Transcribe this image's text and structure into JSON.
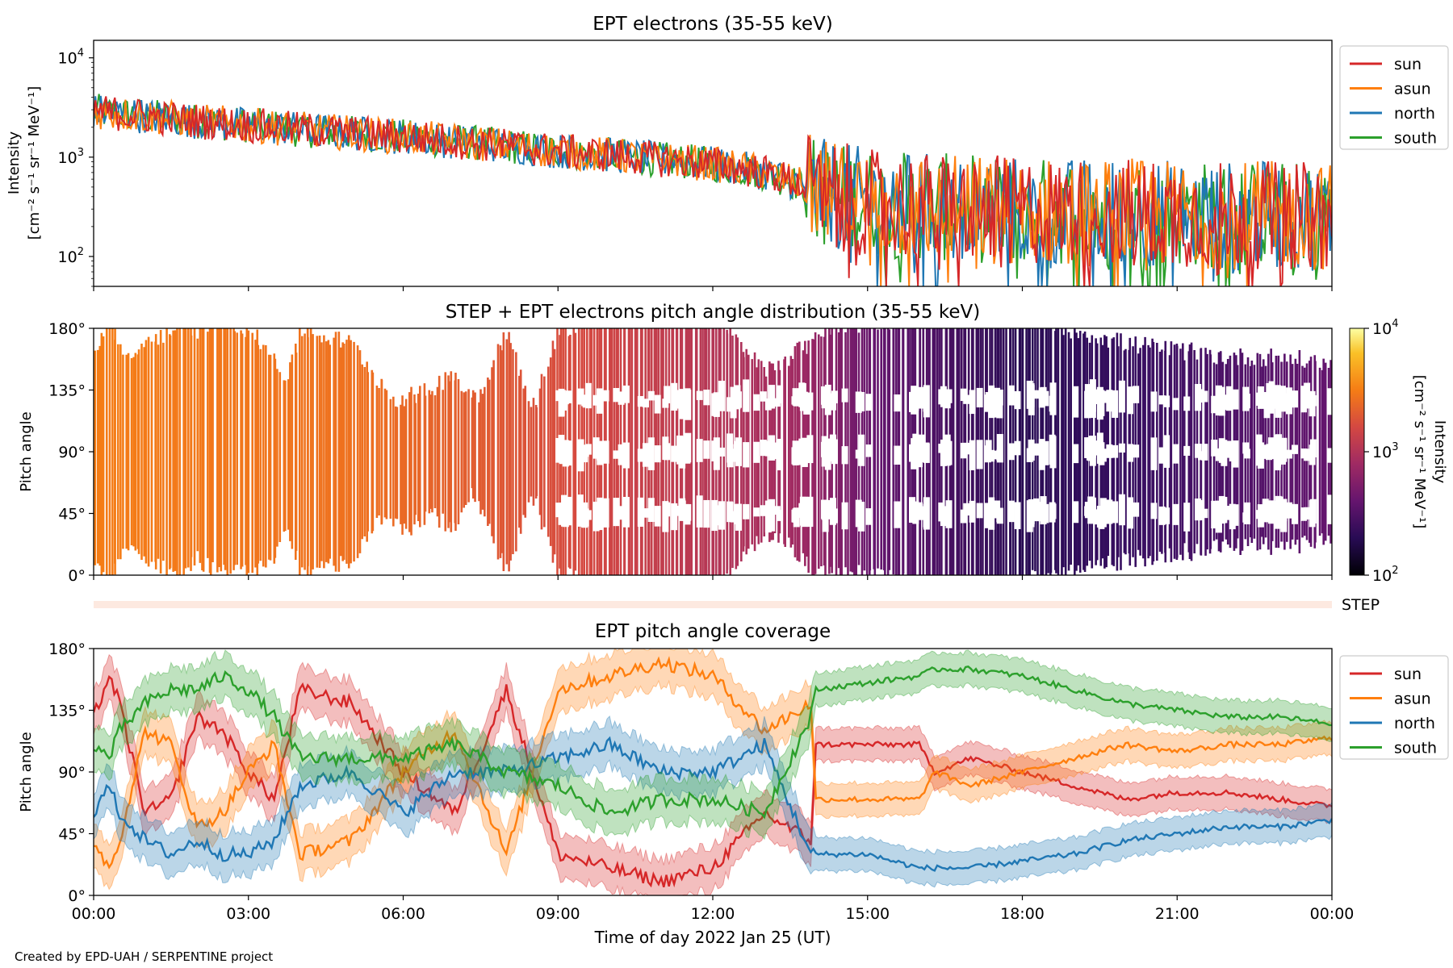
{
  "footer": "Created by EPD-UAH / SERPENTINE project",
  "colors": {
    "sun": "#d62728",
    "asun": "#ff7f0e",
    "north": "#1f77b4",
    "south": "#2ca02c",
    "step_band": "#fde9e0"
  },
  "chart_data": [
    {
      "type": "line",
      "title": "EPT electrons (35-55 keV)",
      "ylabel": "Intensity",
      "ylabel_units": "[cm⁻² s⁻¹ sr⁻¹ MeV⁻¹]",
      "yscale": "log",
      "ylim": [
        50,
        15000
      ],
      "yticks": [
        {
          "value": 100,
          "base": "10",
          "exp": "2"
        },
        {
          "value": 1000,
          "base": "10",
          "exp": "3"
        },
        {
          "value": 10000,
          "base": "10",
          "exp": "4"
        }
      ],
      "legend": "outside-right",
      "xlim_hours": [
        0,
        24
      ],
      "series": [
        {
          "name": "sun",
          "color": "#d62728"
        },
        {
          "name": "asun",
          "color": "#ff7f0e"
        },
        {
          "name": "north",
          "color": "#1f77b4"
        },
        {
          "name": "south",
          "color": "#2ca02c"
        }
      ],
      "trend": {
        "x_hours": [
          0,
          1,
          2,
          3,
          4,
          5,
          6,
          7,
          8,
          9,
          10,
          11,
          12,
          13,
          14,
          15,
          16,
          17,
          18,
          19,
          20,
          21,
          22,
          23,
          24
        ],
        "values": [
          2900,
          2600,
          2300,
          2100,
          1900,
          1750,
          1600,
          1450,
          1300,
          1150,
          1050,
          950,
          850,
          700,
          450,
          350,
          320,
          300,
          290,
          280,
          280,
          270,
          260,
          260,
          250
        ]
      }
    },
    {
      "type": "heatmap",
      "title": "STEP + EPT electrons pitch angle distribution (35-55 keV)",
      "ylabel": "Pitch angle",
      "yticks": [
        "0°",
        "45°",
        "90°",
        "135°",
        "180°"
      ],
      "ylim": [
        0,
        180
      ],
      "xlim_hours": [
        0,
        24
      ],
      "colorbar": {
        "label": "Intensity",
        "units": "[cm⁻² s⁻¹ sr⁻¹ MeV⁻¹]",
        "scale": "log",
        "range": [
          100,
          10000
        ],
        "ticks": [
          {
            "value": 100,
            "base": "10",
            "exp": "2"
          },
          {
            "value": 1000,
            "base": "10",
            "exp": "3"
          },
          {
            "value": 10000,
            "base": "10",
            "exp": "4"
          }
        ],
        "colormap": "inferno"
      }
    },
    {
      "type": "band",
      "label": "STEP"
    },
    {
      "type": "line",
      "title": "EPT pitch angle coverage",
      "ylabel": "Pitch angle",
      "yticks": [
        "0°",
        "45°",
        "90°",
        "135°",
        "180°"
      ],
      "ylim": [
        0,
        180
      ],
      "legend": "outside-right",
      "xlabel": "Time of day 2022 Jan 25 (UT)",
      "xticks": [
        "00:00",
        "03:00",
        "06:00",
        "09:00",
        "12:00",
        "15:00",
        "18:00",
        "21:00",
        "00:00"
      ],
      "xlim_hours": [
        0,
        24
      ],
      "series": [
        {
          "name": "sun",
          "color": "#d62728",
          "x_hours": [
            0,
            0.3,
            0.5,
            1,
            1.5,
            2,
            2.5,
            3,
            3.5,
            4,
            5,
            6,
            7,
            8,
            9,
            10,
            11,
            12,
            13,
            13.9,
            14,
            15,
            16,
            16.3,
            17,
            18,
            19,
            20,
            21,
            22,
            23,
            24
          ],
          "values": [
            130,
            160,
            140,
            60,
            70,
            130,
            120,
            90,
            70,
            150,
            140,
            90,
            60,
            150,
            30,
            20,
            10,
            20,
            60,
            40,
            110,
            110,
            110,
            90,
            100,
            90,
            80,
            70,
            75,
            75,
            70,
            65
          ]
        },
        {
          "name": "asun",
          "color": "#ff7f0e",
          "x_hours": [
            0,
            0.3,
            0.5,
            1,
            1.5,
            2,
            2.5,
            3,
            3.5,
            4,
            5,
            6,
            7,
            8,
            9,
            10,
            11,
            12,
            13,
            13.9,
            14,
            15,
            16,
            16.3,
            17,
            18,
            19,
            20,
            21,
            22,
            23,
            24
          ],
          "values": [
            40,
            20,
            40,
            120,
            110,
            50,
            60,
            90,
            110,
            30,
            40,
            90,
            120,
            30,
            150,
            160,
            170,
            160,
            120,
            140,
            70,
            70,
            70,
            90,
            80,
            90,
            100,
            110,
            105,
            110,
            110,
            115
          ]
        },
        {
          "name": "north",
          "color": "#1f77b4",
          "x_hours": [
            0,
            0.3,
            0.5,
            1,
            1.5,
            2,
            2.5,
            3,
            3.5,
            4,
            5,
            6,
            7,
            8,
            9,
            10,
            11,
            12,
            13,
            13.9,
            14,
            15,
            16,
            16.3,
            17,
            18,
            19,
            20,
            21,
            22,
            23,
            24
          ],
          "values": [
            60,
            80,
            60,
            40,
            30,
            40,
            30,
            30,
            40,
            80,
            90,
            60,
            90,
            90,
            100,
            110,
            90,
            90,
            110,
            30,
            30,
            30,
            20,
            20,
            20,
            25,
            30,
            40,
            45,
            50,
            50,
            55
          ]
        },
        {
          "name": "south",
          "color": "#2ca02c",
          "x_hours": [
            0,
            0.3,
            0.5,
            1,
            1.5,
            2,
            2.5,
            3,
            3.5,
            4,
            5,
            6,
            7,
            8,
            9,
            10,
            11,
            12,
            13,
            13.9,
            14,
            15,
            16,
            16.3,
            17,
            18,
            19,
            20,
            21,
            22,
            23,
            24
          ],
          "values": [
            110,
            100,
            120,
            140,
            150,
            150,
            160,
            150,
            130,
            100,
            100,
            100,
            110,
            90,
            80,
            60,
            70,
            70,
            60,
            130,
            150,
            155,
            160,
            165,
            165,
            160,
            150,
            140,
            135,
            130,
            130,
            125
          ]
        }
      ]
    }
  ]
}
